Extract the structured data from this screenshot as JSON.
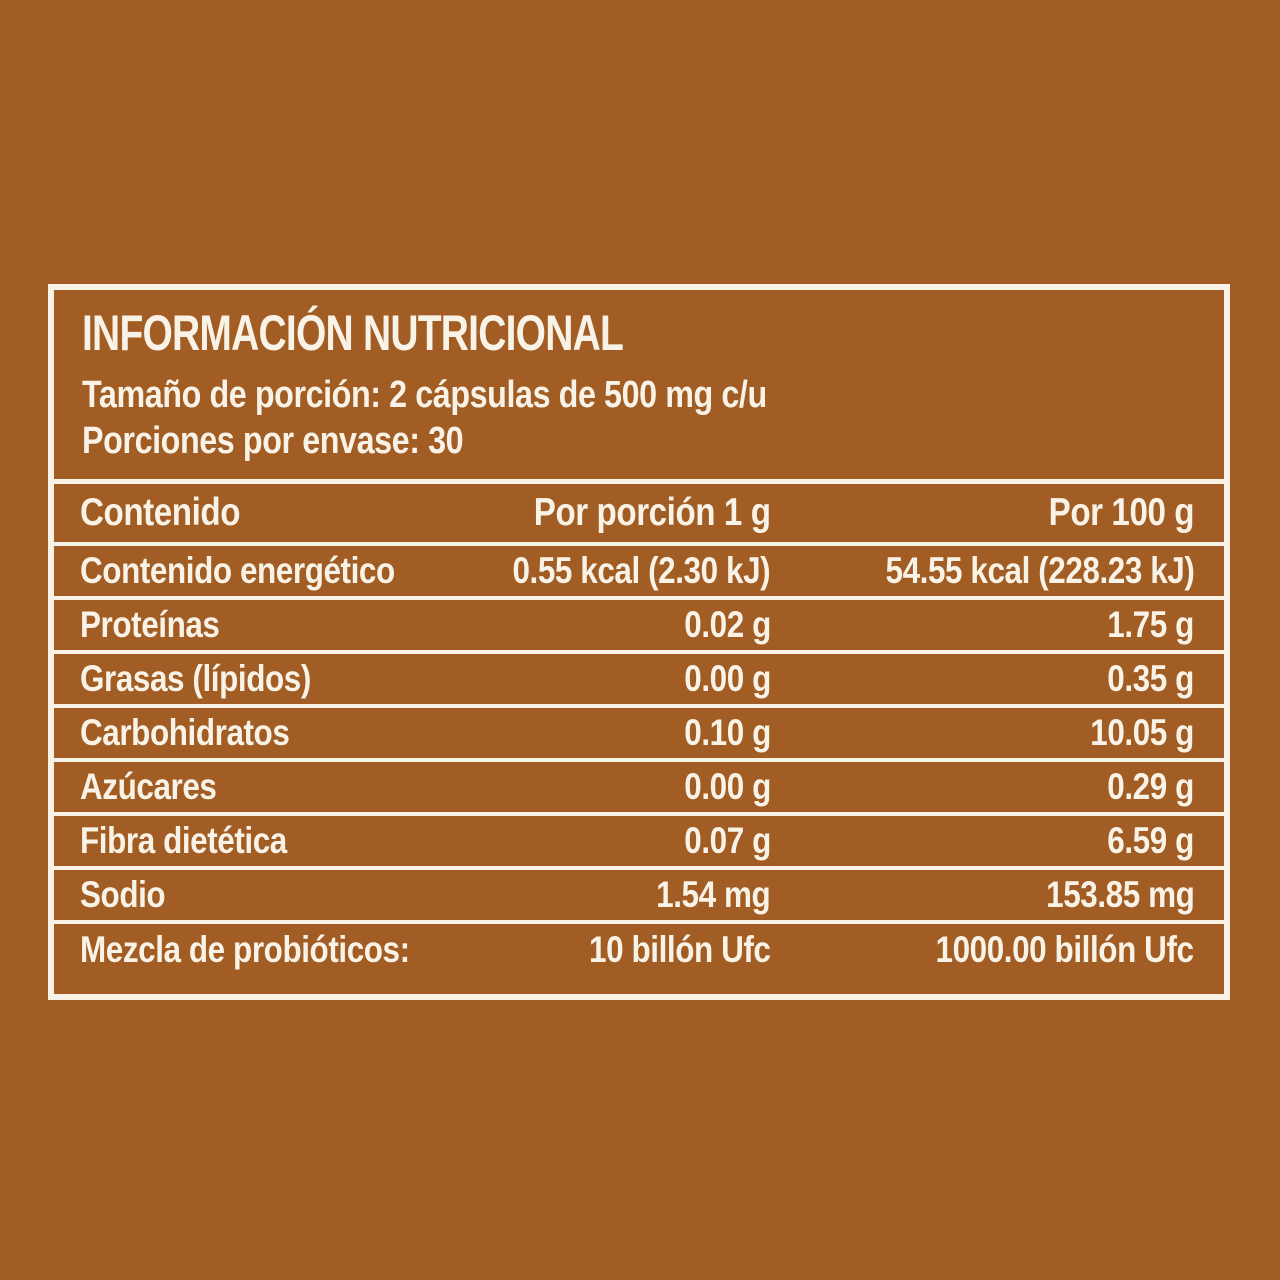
{
  "colors": {
    "background": "#A15D23",
    "ink": "#F8F2E7"
  },
  "label": {
    "title": "INFORMACIÓN NUTRICIONAL",
    "serving_size_line": "Tamaño de porción: 2 cápsulas de 500 mg c/u",
    "servings_per_container_line": "Porciones por envase: 30",
    "table": {
      "headers": {
        "content": "Contenido",
        "per_serving": "Por porción 1 g",
        "per_100g": "Por 100 g"
      },
      "rows": [
        {
          "name": "Contenido energético",
          "per_serving": "0.55 kcal (2.30 kJ)",
          "per_100g": "54.55 kcal (228.23 kJ)"
        },
        {
          "name": "Proteínas",
          "per_serving": "0.02 g",
          "per_100g": "1.75 g"
        },
        {
          "name": "Grasas (lípidos)",
          "per_serving": "0.00 g",
          "per_100g": "0.35 g"
        },
        {
          "name": "Carbohidratos",
          "per_serving": "0.10 g",
          "per_100g": "10.05 g"
        },
        {
          "name": "Azúcares",
          "per_serving": "0.00 g",
          "per_100g": "0.29 g"
        },
        {
          "name": "Fibra dietética",
          "per_serving": "0.07 g",
          "per_100g": "6.59 g"
        },
        {
          "name": "Sodio",
          "per_serving": "1.54 mg",
          "per_100g": "153.85 mg"
        },
        {
          "name": "Mezcla de probióticos:",
          "per_serving": "10 billón Ufc",
          "per_100g": "1000.00 billón Ufc"
        }
      ]
    }
  }
}
